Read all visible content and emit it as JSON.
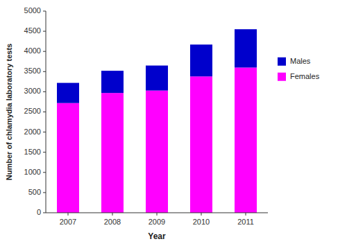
{
  "chart_data": {
    "type": "bar",
    "stacked": true,
    "categories": [
      "2007",
      "2008",
      "2009",
      "2010",
      "2011"
    ],
    "series": [
      {
        "name": "Females",
        "color": "#FF00FF",
        "values": [
          2720,
          2970,
          3030,
          3380,
          3600
        ]
      },
      {
        "name": "Males",
        "color": "#0000CC",
        "values": [
          500,
          550,
          620,
          790,
          950
        ]
      }
    ],
    "xlabel": "Year",
    "ylabel": "Number of chlamydia laboratory tests",
    "ylim": [
      0,
      5000
    ],
    "yticks": [
      0,
      500,
      1000,
      1500,
      2000,
      2500,
      3000,
      3500,
      4000,
      4500,
      5000
    ],
    "grid": false,
    "legend": "right"
  }
}
